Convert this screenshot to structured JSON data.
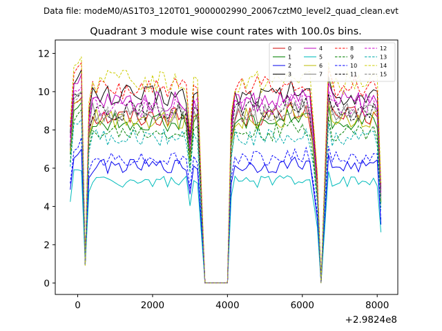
{
  "figure": {
    "suptitle": "Data file: modeM0/AS1T03_120T01_9000002990_20067cztM0_level2_quad_clean.evt"
  },
  "chart_data": {
    "type": "line",
    "title": "Quadrant 3 module wise count rates with 100.0s bins.",
    "xlabel": "",
    "ylabel": "",
    "x_offset_label": "+2.9824e8",
    "xlim": [
      -600,
      8550
    ],
    "ylim": [
      -0.6,
      12.7
    ],
    "xticks": [
      0,
      2000,
      4000,
      6000,
      8000
    ],
    "yticks": [
      0,
      2,
      4,
      6,
      8,
      10,
      12
    ],
    "legend_position": "upper right",
    "segments": [
      {
        "x_start": -200,
        "x_end": 250,
        "step": 100
      },
      {
        "x_start": 250,
        "x_end": 3000,
        "step": 100
      },
      {
        "x_start": 3000,
        "x_end": 3500,
        "step": 100
      },
      {
        "x_start": 3500,
        "x_end": 4050,
        "step": 100
      },
      {
        "x_start": 4050,
        "x_end": 6300,
        "step": 100
      },
      {
        "x_start": 6300,
        "x_end": 6800,
        "step": 100
      },
      {
        "x_start": 6800,
        "x_end": 8100,
        "step": 100
      }
    ],
    "series": [
      {
        "name": "0",
        "color": "#d00000",
        "dash": "solid",
        "base": 8.7
      },
      {
        "name": "1",
        "color": "#008000",
        "dash": "solid",
        "base": 8.4
      },
      {
        "name": "2",
        "color": "#0000ee",
        "dash": "solid",
        "base": 6.1
      },
      {
        "name": "3",
        "color": "#000000",
        "dash": "solid",
        "base": 9.8
      },
      {
        "name": "4",
        "color": "#bb00bb",
        "dash": "solid",
        "base": 9.5
      },
      {
        "name": "5",
        "color": "#00bbbb",
        "dash": "solid",
        "base": 5.3
      },
      {
        "name": "6",
        "color": "#bbbb00",
        "dash": "solid",
        "base": 8.6
      },
      {
        "name": "7",
        "color": "#808080",
        "dash": "solid",
        "base": 8.9
      },
      {
        "name": "8",
        "color": "#ff0000",
        "dash": "dashed",
        "base": 10.2
      },
      {
        "name": "9",
        "color": "#008000",
        "dash": "dashed",
        "base": 7.9
      },
      {
        "name": "10",
        "color": "#0000ff",
        "dash": "dashed",
        "base": 6.5
      },
      {
        "name": "11",
        "color": "#000000",
        "dash": "dashed",
        "base": 9.0
      },
      {
        "name": "12",
        "color": "#cc00cc",
        "dash": "dashed",
        "base": 9.2
      },
      {
        "name": "13",
        "color": "#00aaaa",
        "dash": "dashed",
        "base": 7.6
      },
      {
        "name": "14",
        "color": "#cccc00",
        "dash": "dashed",
        "base": 10.5
      },
      {
        "name": "15",
        "color": "#808080",
        "dash": "dashed",
        "base": 8.8
      }
    ],
    "notes": "Rates fall to ~0.9 near x=200, rise again, then drop to 0 between x~3400 and ~4000, recover until ~6300, dip near 6400-6500 to 0, then recover; final bins decline to ~4."
  }
}
